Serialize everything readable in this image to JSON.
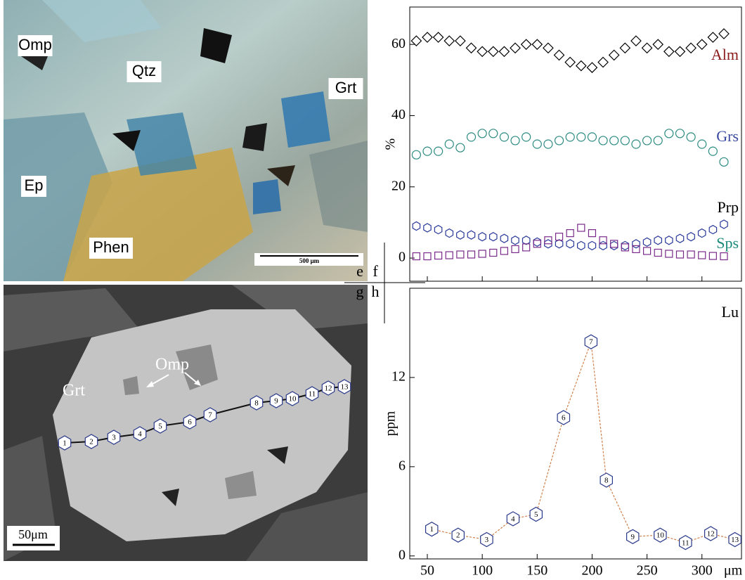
{
  "panel_labels": [
    "e",
    "f",
    "g",
    "h"
  ],
  "images": [
    {
      "labels": [
        "Omp",
        "Qtz",
        "Grt",
        "Ep",
        "Phen"
      ],
      "scale_bar": "500 μm"
    },
    {
      "labels": [
        "Grt",
        "Omp"
      ],
      "spots": [
        "1",
        "2",
        "3",
        "4",
        "5",
        "6",
        "7",
        "8",
        "9",
        "10",
        "11",
        "12",
        "13"
      ],
      "scale_bar": "50μm"
    }
  ],
  "chart_data": [
    {
      "type": "scatter",
      "ylabel": "%",
      "x": [
        40,
        50,
        60,
        70,
        80,
        90,
        100,
        110,
        120,
        130,
        140,
        150,
        160,
        170,
        180,
        190,
        200,
        210,
        220,
        230,
        240,
        250,
        260,
        270,
        280,
        290,
        300,
        310,
        320
      ],
      "series": [
        {
          "name": "Alm",
          "color": "#000000",
          "label_color": "#8b1a1a",
          "marker": "diamond",
          "values": [
            61,
            62,
            62,
            61,
            61,
            59,
            58,
            58,
            58,
            59,
            60,
            60,
            59,
            57,
            55,
            54,
            53.5,
            55,
            57,
            59,
            61,
            59,
            60,
            58,
            58,
            59,
            60,
            62,
            63
          ]
        },
        {
          "name": "Grs",
          "color": "#2a8a80",
          "label_color": "#3a4aa0",
          "marker": "circle",
          "values": [
            29,
            30,
            30,
            32,
            31,
            34,
            35,
            35,
            34,
            33,
            34,
            32,
            32,
            33,
            34,
            34,
            34,
            33,
            33,
            33,
            32,
            33,
            33,
            35,
            35,
            34,
            32,
            30,
            27
          ]
        },
        {
          "name": "Prp",
          "color": "#2a3a9a",
          "label_color": "#000000",
          "marker": "hexagon",
          "values": [
            9,
            8.5,
            8,
            7,
            6.5,
            6.5,
            6,
            6,
            5.5,
            5,
            5,
            4.5,
            4,
            4,
            4,
            3.5,
            3.5,
            3.5,
            3.5,
            3.5,
            4,
            4.5,
            5,
            5,
            5.5,
            6,
            7,
            8,
            9.5
          ]
        },
        {
          "name": "Sps",
          "color": "#7a2a8a",
          "label_color": "#1a8a7a",
          "marker": "square",
          "values": [
            0.5,
            0.5,
            0.7,
            0.8,
            1,
            1,
            1.2,
            1.5,
            2,
            2.5,
            3,
            4,
            5,
            6,
            7,
            8.5,
            7,
            5,
            4,
            3,
            2.5,
            2,
            1.5,
            1.2,
            1,
            1,
            0.8,
            0.6,
            0.5
          ]
        }
      ],
      "xlim": [
        34,
        336
      ],
      "xticks": [
        50,
        100,
        150,
        200,
        250,
        300
      ],
      "show_xtick_labels": false,
      "ylim": [
        -6.5,
        70.5
      ],
      "yticks": [
        0,
        20,
        40,
        60
      ]
    },
    {
      "type": "line",
      "ylabel": "ppm",
      "xlabel": "μm",
      "x": [
        54,
        78,
        104,
        128,
        149,
        174,
        199,
        213,
        237,
        262,
        285,
        308,
        330
      ],
      "series": [
        {
          "name": "Lu",
          "color": "#2a3a8a",
          "label_color": "#000000",
          "marker": "hexagon",
          "line_color": "#d0804a",
          "point_labels": [
            "1",
            "2",
            "3",
            "4",
            "5",
            "6",
            "7",
            "8",
            "9",
            "10",
            "11",
            "12",
            "13"
          ],
          "values": [
            1.8,
            1.4,
            1.1,
            2.5,
            2.8,
            9.3,
            14.4,
            5.1,
            1.3,
            1.4,
            0.9,
            1.5,
            1.1
          ]
        }
      ],
      "xlim": [
        34,
        336
      ],
      "xticks": [
        50,
        100,
        150,
        200,
        250,
        300
      ],
      "show_xtick_labels": true,
      "ylim": [
        -0.2,
        18
      ],
      "yticks": [
        0,
        6,
        12
      ]
    }
  ]
}
